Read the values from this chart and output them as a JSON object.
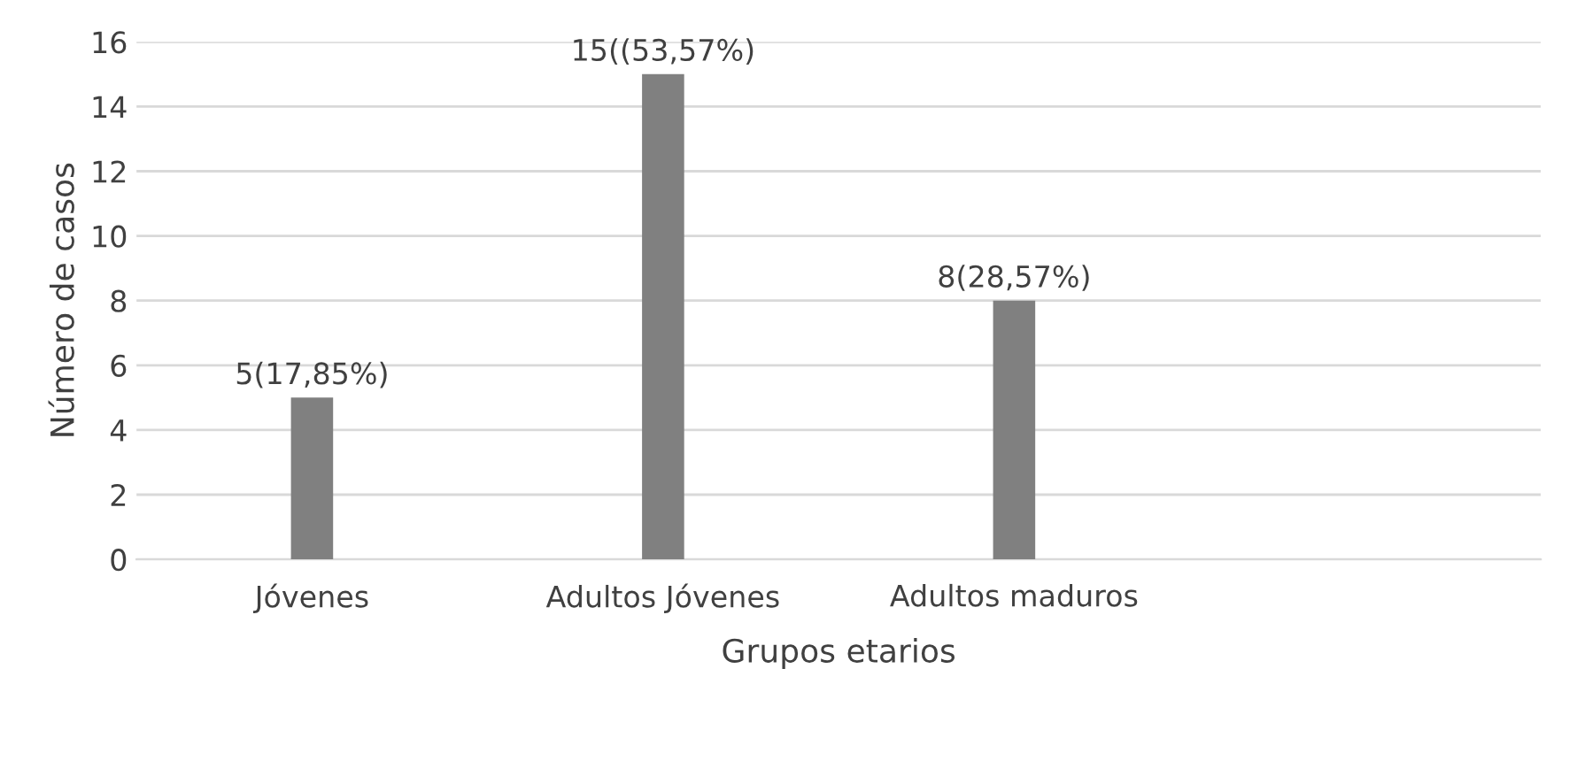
{
  "chart_data": {
    "type": "bar",
    "xlabel": "Grupos etarios",
    "ylabel": "Número de casos",
    "categories": [
      "Jóvenes",
      "Adultos Jóvenes",
      "Adultos maduros",
      null
    ],
    "values": [
      5,
      15,
      8,
      null
    ],
    "value_labels": [
      "5(17,85%)",
      "15((53,57%)",
      "8(28,57%)",
      null
    ],
    "color": "#808080",
    "ylim": [
      0,
      16
    ],
    "yticks": [
      0,
      2,
      4,
      6,
      8,
      10,
      12,
      14,
      16
    ],
    "grid": "y",
    "legend": false
  }
}
